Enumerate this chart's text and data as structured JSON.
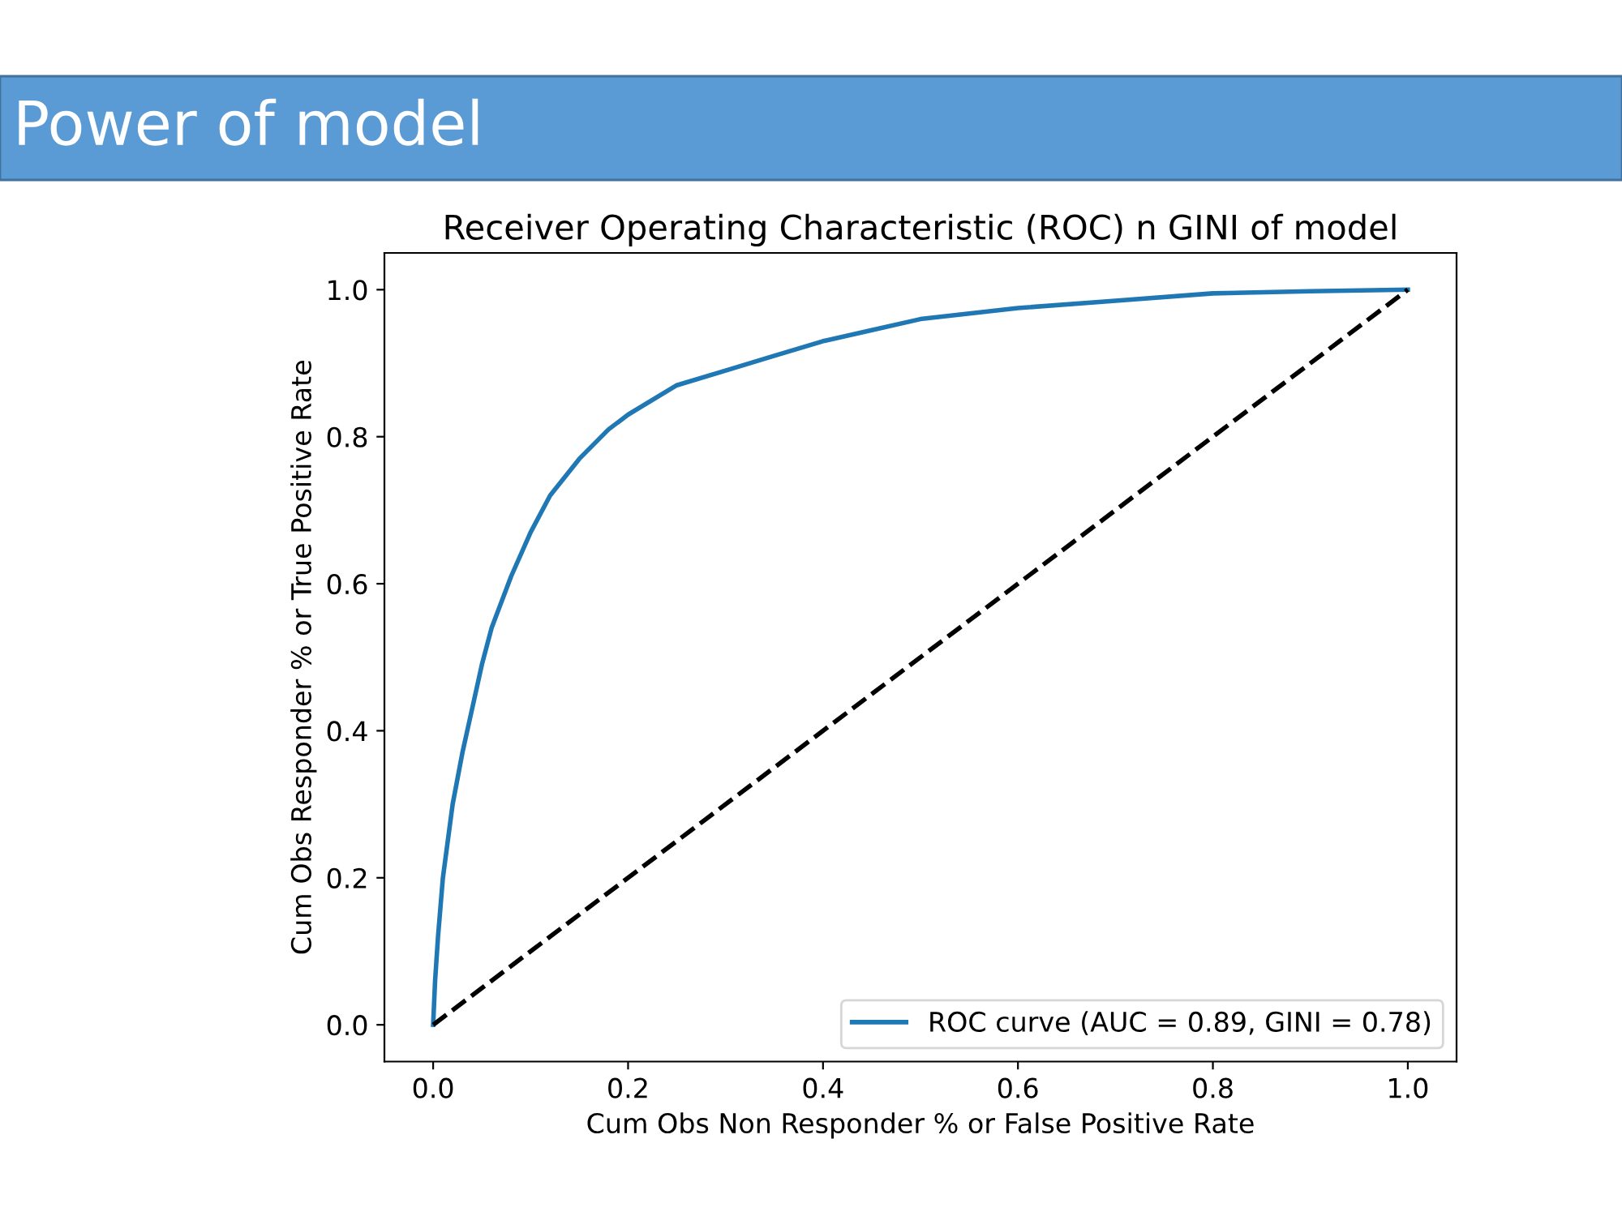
{
  "chart_data": {
    "type": "line",
    "title": "Receiver Operating Characteristic (ROC) n GINI of model",
    "xlabel": "Cum Obs Non Responder % or False Positive Rate",
    "ylabel": "Cum Obs Responder % or True Positive Rate",
    "annotations": [
      "Power of model"
    ],
    "series": [
      {
        "name": "ROC curve (AUC = 0.89, GINI = 0.78)",
        "color": "#1f77b4",
        "line_style": "solid",
        "x": [
          0,
          0.002,
          0.005,
          0.01,
          0.02,
          0.03,
          0.04,
          0.05,
          0.06,
          0.08,
          0.1,
          0.12,
          0.15,
          0.18,
          0.2,
          0.25,
          0.3,
          0.35,
          0.4,
          0.45,
          0.5,
          0.6,
          0.7,
          0.8,
          0.9,
          1.0
        ],
        "values": [
          0,
          0.06,
          0.12,
          0.2,
          0.3,
          0.37,
          0.43,
          0.49,
          0.54,
          0.61,
          0.67,
          0.72,
          0.77,
          0.81,
          0.83,
          0.87,
          0.89,
          0.91,
          0.93,
          0.945,
          0.96,
          0.975,
          0.985,
          0.995,
          0.998,
          1.0
        ]
      },
      {
        "color": "#000000",
        "line_style": "dashed",
        "x": [
          0,
          1
        ],
        "values": [
          0,
          1
        ]
      }
    ],
    "xlim": [
      -0.05,
      1.05
    ],
    "ylim": [
      -0.05,
      1.05
    ],
    "xticks": [
      {
        "value": 0,
        "label": "0.0"
      },
      {
        "value": 0.2,
        "label": "0.2"
      },
      {
        "value": 0.4,
        "label": "0.4"
      },
      {
        "value": 0.6,
        "label": "0.6"
      },
      {
        "value": 0.8,
        "label": "0.8"
      },
      {
        "value": 1,
        "label": "1.0"
      }
    ],
    "yticks": [
      {
        "value": 0,
        "label": "0.0"
      },
      {
        "value": 0.2,
        "label": "0.2"
      },
      {
        "value": 0.4,
        "label": "0.4"
      },
      {
        "value": 0.6,
        "label": "0.6"
      },
      {
        "value": 0.8,
        "label": "0.8"
      },
      {
        "value": 1,
        "label": "1.0"
      }
    ],
    "legend": "bottom right",
    "grid": false
  }
}
